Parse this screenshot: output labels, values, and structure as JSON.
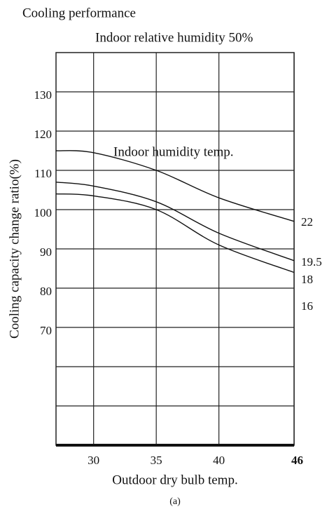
{
  "chart_data": {
    "type": "line",
    "title": "Cooling performance",
    "subtitle": "Indoor relative humidity 50%",
    "annotation": "Indoor humidity temp.",
    "extra_label": "16",
    "x_label": "Outdoor dry bulb temp.",
    "y_label": "Cooling capacity change ratio(%)",
    "caption": "(a)",
    "x": [
      27,
      30,
      35,
      40,
      46
    ],
    "series": [
      {
        "name": "22",
        "color": "#111111",
        "values": [
          115,
          114.5,
          110,
          103,
          97
        ]
      },
      {
        "name": "19.5",
        "color": "#111111",
        "values": [
          107,
          106,
          102,
          94,
          87
        ]
      },
      {
        "name": "18",
        "color": "#111111",
        "values": [
          104,
          103.5,
          100,
          91,
          84
        ]
      }
    ],
    "xlim": [
      27,
      46
    ],
    "xticks": [
      30,
      35,
      40,
      46
    ],
    "ylim": [
      40,
      140
    ],
    "yticks": [
      70,
      80,
      90,
      100,
      110,
      120,
      130
    ],
    "minor_grid": [
      50,
      60
    ],
    "grid": true
  }
}
